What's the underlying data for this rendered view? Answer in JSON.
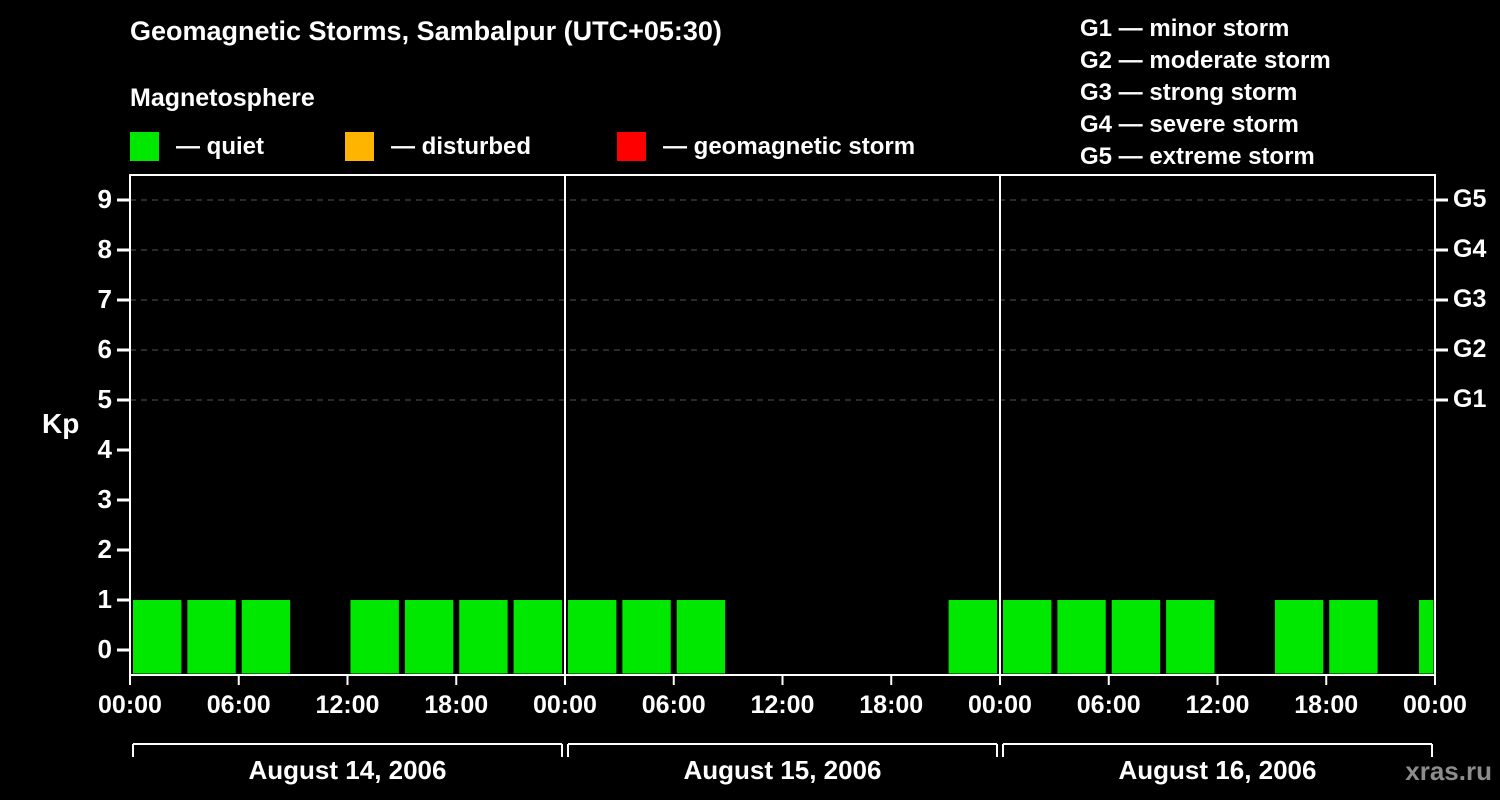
{
  "title": "Geomagnetic Storms, Sambalpur (UTC+05:30)",
  "subtitle": "Magnetosphere",
  "status_legend": [
    {
      "name": "quiet",
      "label": "— quiet",
      "color": "#00e800"
    },
    {
      "name": "disturbed",
      "label": "— disturbed",
      "color": "#ffb400"
    },
    {
      "name": "storm",
      "label": "— geomagnetic storm",
      "color": "#ff0000"
    }
  ],
  "storm_scale_legend": [
    "G1 — minor storm",
    "G2 — moderate storm",
    "G3 — strong storm",
    "G4 — severe storm",
    "G5 — extreme storm"
  ],
  "watermark": "xras.ru",
  "chart_data": {
    "type": "bar",
    "title": "Geomagnetic Storms, Sambalpur (UTC+05:30)",
    "ylabel": "Kp",
    "ylim": [
      -0.5,
      9.5
    ],
    "y_ticks": [
      0,
      1,
      2,
      3,
      4,
      5,
      6,
      7,
      8,
      9
    ],
    "grid_levels": [
      5,
      6,
      7,
      8,
      9
    ],
    "grid_style": "dashed",
    "legend_position": "top",
    "right_axis_labels": [
      {
        "kp": 9,
        "label": "G5"
      },
      {
        "kp": 8,
        "label": "G4"
      },
      {
        "kp": 7,
        "label": "G3"
      },
      {
        "kp": 6,
        "label": "G2"
      },
      {
        "kp": 5,
        "label": "G1"
      }
    ],
    "bin_hours": 3,
    "x_tick_interval_hours": 6,
    "x_tick_labels": [
      "00:00",
      "06:00",
      "12:00",
      "18:00"
    ],
    "bar_color": "#00e800",
    "grid_color": "#555555",
    "axis_color": "#ffffff",
    "days": [
      {
        "date": "August 14, 2006",
        "kp": [
          1,
          1,
          1,
          0,
          1,
          1,
          1,
          1
        ]
      },
      {
        "date": "August 15, 2006",
        "kp": [
          1,
          1,
          1,
          0,
          0,
          0,
          0,
          1
        ]
      },
      {
        "date": "August 16, 2006",
        "kp": [
          1,
          1,
          1,
          1,
          0,
          1,
          1,
          0
        ]
      }
    ],
    "trailing_partial_bar": {
      "kp": 1
    }
  }
}
